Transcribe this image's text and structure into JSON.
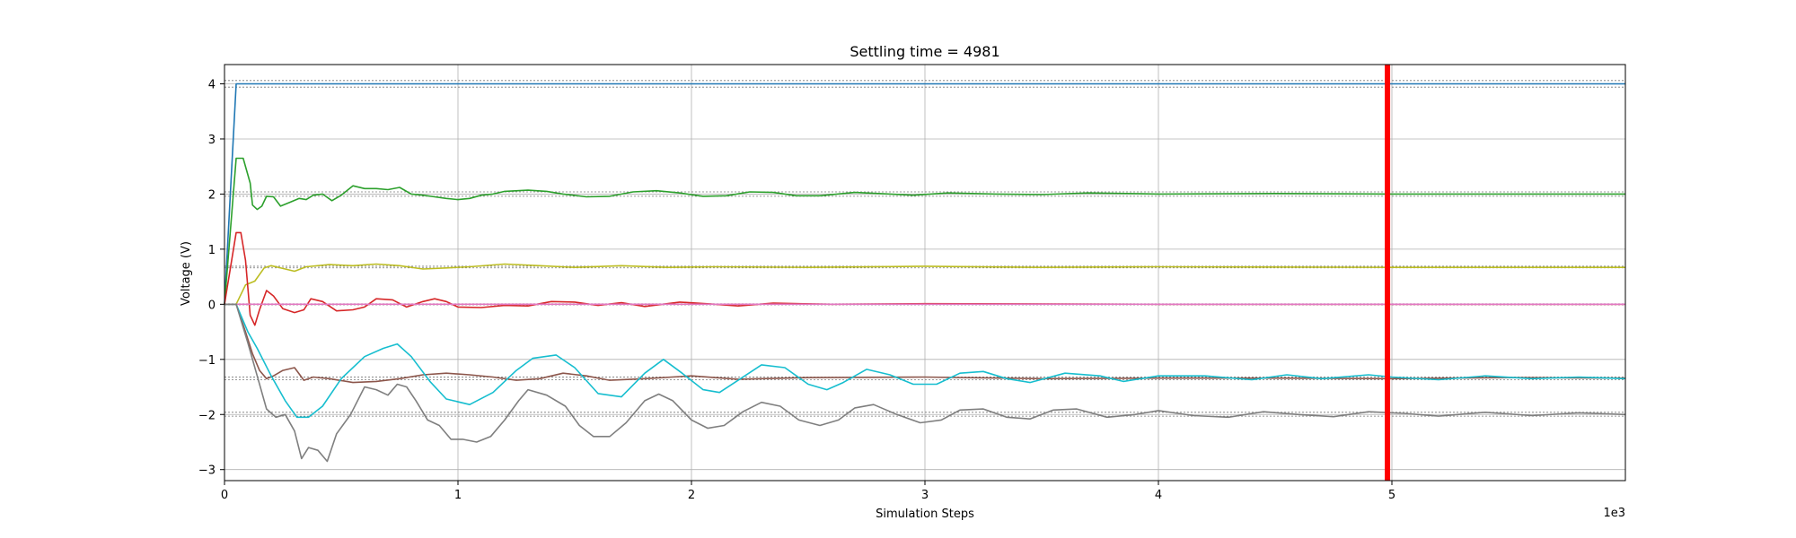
{
  "chart_data": {
    "type": "line",
    "title": "Settling time = 4981",
    "xlabel": "Simulation Steps",
    "ylabel": "Voltage (V)",
    "x_offset_label": "1e3",
    "xlim": [
      0,
      6
    ],
    "ylim": [
      -3.2,
      4.35
    ],
    "xticks": [
      0,
      1,
      2,
      3,
      4,
      5
    ],
    "xtick_labels": [
      "0",
      "1",
      "2",
      "3",
      "4",
      "5"
    ],
    "yticks": [
      -3,
      -2,
      -1,
      0,
      1,
      2,
      3,
      4
    ],
    "ytick_labels": [
      "−3",
      "−2",
      "−1",
      "0",
      "1",
      "2",
      "3",
      "4"
    ],
    "grid": true,
    "settling_time": 4.981,
    "settling_color": "#ff0000",
    "tolerance_bands": [
      [
        3.94,
        4.06
      ],
      [
        1.96,
        2.04
      ],
      [
        0.66,
        0.69
      ],
      [
        -0.01,
        0.01
      ],
      [
        -1.37,
        -1.32
      ],
      [
        -2.03,
        -1.96
      ]
    ],
    "series": [
      {
        "color": "#1f77b4",
        "points": [
          [
            0,
            0
          ],
          [
            0.05,
            4
          ],
          [
            6,
            4
          ]
        ]
      },
      {
        "color": "#2ca02c",
        "points": [
          [
            0,
            0
          ],
          [
            0.05,
            2.65
          ],
          [
            0.08,
            2.65
          ],
          [
            0.11,
            2.2
          ],
          [
            0.12,
            1.8
          ],
          [
            0.14,
            1.72
          ],
          [
            0.16,
            1.78
          ],
          [
            0.18,
            1.96
          ],
          [
            0.21,
            1.95
          ],
          [
            0.24,
            1.78
          ],
          [
            0.28,
            1.85
          ],
          [
            0.32,
            1.92
          ],
          [
            0.35,
            1.9
          ],
          [
            0.38,
            1.98
          ],
          [
            0.42,
            2.0
          ],
          [
            0.46,
            1.88
          ],
          [
            0.5,
            1.98
          ],
          [
            0.55,
            2.15
          ],
          [
            0.6,
            2.1
          ],
          [
            0.65,
            2.1
          ],
          [
            0.7,
            2.08
          ],
          [
            0.75,
            2.12
          ],
          [
            0.8,
            2.0
          ],
          [
            0.85,
            1.98
          ],
          [
            0.9,
            1.95
          ],
          [
            0.95,
            1.92
          ],
          [
            1.0,
            1.9
          ],
          [
            1.05,
            1.92
          ],
          [
            1.1,
            1.98
          ],
          [
            1.15,
            2.0
          ],
          [
            1.2,
            2.05
          ],
          [
            1.3,
            2.07
          ],
          [
            1.38,
            2.05
          ],
          [
            1.45,
            2.0
          ],
          [
            1.55,
            1.95
          ],
          [
            1.65,
            1.96
          ],
          [
            1.75,
            2.04
          ],
          [
            1.85,
            2.06
          ],
          [
            1.95,
            2.02
          ],
          [
            2.05,
            1.96
          ],
          [
            2.15,
            1.97
          ],
          [
            2.25,
            2.04
          ],
          [
            2.35,
            2.03
          ],
          [
            2.45,
            1.97
          ],
          [
            2.55,
            1.97
          ],
          [
            2.7,
            2.03
          ],
          [
            2.85,
            2.0
          ],
          [
            2.95,
            1.98
          ],
          [
            3.1,
            2.02
          ],
          [
            3.3,
            2.0
          ],
          [
            3.5,
            1.99
          ],
          [
            3.7,
            2.02
          ],
          [
            4.0,
            2.0
          ],
          [
            4.5,
            2.01
          ],
          [
            5.0,
            2.0
          ],
          [
            6,
            2.0
          ]
        ]
      },
      {
        "color": "#bcbd22",
        "points": [
          [
            0,
            0
          ],
          [
            0.05,
            0.0
          ],
          [
            0.09,
            0.35
          ],
          [
            0.13,
            0.42
          ],
          [
            0.17,
            0.66
          ],
          [
            0.2,
            0.7
          ],
          [
            0.25,
            0.65
          ],
          [
            0.3,
            0.6
          ],
          [
            0.35,
            0.68
          ],
          [
            0.45,
            0.72
          ],
          [
            0.55,
            0.7
          ],
          [
            0.65,
            0.73
          ],
          [
            0.75,
            0.7
          ],
          [
            0.85,
            0.64
          ],
          [
            0.95,
            0.66
          ],
          [
            1.05,
            0.68
          ],
          [
            1.2,
            0.73
          ],
          [
            1.35,
            0.7
          ],
          [
            1.5,
            0.67
          ],
          [
            1.7,
            0.7
          ],
          [
            1.9,
            0.67
          ],
          [
            2.1,
            0.68
          ],
          [
            2.5,
            0.67
          ],
          [
            3.0,
            0.69
          ],
          [
            3.5,
            0.67
          ],
          [
            4.0,
            0.68
          ],
          [
            5.0,
            0.67
          ],
          [
            6,
            0.67
          ]
        ]
      },
      {
        "color": "#d62728",
        "points": [
          [
            0,
            0
          ],
          [
            0.05,
            1.3
          ],
          [
            0.07,
            1.3
          ],
          [
            0.09,
            0.8
          ],
          [
            0.11,
            -0.2
          ],
          [
            0.13,
            -0.38
          ],
          [
            0.15,
            -0.1
          ],
          [
            0.18,
            0.25
          ],
          [
            0.21,
            0.15
          ],
          [
            0.25,
            -0.08
          ],
          [
            0.3,
            -0.15
          ],
          [
            0.34,
            -0.1
          ],
          [
            0.37,
            0.1
          ],
          [
            0.42,
            0.05
          ],
          [
            0.48,
            -0.12
          ],
          [
            0.55,
            -0.1
          ],
          [
            0.6,
            -0.05
          ],
          [
            0.65,
            0.1
          ],
          [
            0.72,
            0.08
          ],
          [
            0.78,
            -0.05
          ],
          [
            0.85,
            0.05
          ],
          [
            0.9,
            0.1
          ],
          [
            0.95,
            0.05
          ],
          [
            1.0,
            -0.05
          ],
          [
            1.1,
            -0.06
          ],
          [
            1.2,
            -0.02
          ],
          [
            1.3,
            -0.03
          ],
          [
            1.4,
            0.05
          ],
          [
            1.5,
            0.04
          ],
          [
            1.6,
            -0.02
          ],
          [
            1.7,
            0.03
          ],
          [
            1.8,
            -0.04
          ],
          [
            1.95,
            0.04
          ],
          [
            2.1,
            0.0
          ],
          [
            2.2,
            -0.03
          ],
          [
            2.35,
            0.02
          ],
          [
            2.6,
            0.0
          ],
          [
            3.0,
            0.01
          ],
          [
            4.0,
            0.0
          ],
          [
            6,
            0.0
          ]
        ]
      },
      {
        "color": "#e377c2",
        "points": [
          [
            0,
            0
          ],
          [
            0.5,
            0
          ],
          [
            1,
            0
          ],
          [
            2,
            0
          ],
          [
            3,
            0
          ],
          [
            4,
            0
          ],
          [
            5,
            0
          ],
          [
            6,
            0
          ]
        ]
      },
      {
        "color": "#8c564b",
        "points": [
          [
            0,
            0
          ],
          [
            0.05,
            0.0
          ],
          [
            0.09,
            -0.5
          ],
          [
            0.12,
            -0.9
          ],
          [
            0.15,
            -1.2
          ],
          [
            0.18,
            -1.35
          ],
          [
            0.21,
            -1.3
          ],
          [
            0.25,
            -1.2
          ],
          [
            0.3,
            -1.15
          ],
          [
            0.34,
            -1.38
          ],
          [
            0.38,
            -1.32
          ],
          [
            0.45,
            -1.35
          ],
          [
            0.55,
            -1.42
          ],
          [
            0.65,
            -1.4
          ],
          [
            0.75,
            -1.35
          ],
          [
            0.85,
            -1.28
          ],
          [
            0.95,
            -1.25
          ],
          [
            1.05,
            -1.28
          ],
          [
            1.15,
            -1.32
          ],
          [
            1.25,
            -1.38
          ],
          [
            1.35,
            -1.35
          ],
          [
            1.45,
            -1.25
          ],
          [
            1.55,
            -1.3
          ],
          [
            1.65,
            -1.38
          ],
          [
            1.8,
            -1.35
          ],
          [
            2.0,
            -1.3
          ],
          [
            2.2,
            -1.36
          ],
          [
            2.5,
            -1.33
          ],
          [
            3.0,
            -1.32
          ],
          [
            3.5,
            -1.35
          ],
          [
            4.0,
            -1.34
          ],
          [
            4.5,
            -1.34
          ],
          [
            5.0,
            -1.35
          ],
          [
            5.5,
            -1.33
          ],
          [
            6,
            -1.34
          ]
        ]
      },
      {
        "color": "#17becf",
        "points": [
          [
            0,
            0
          ],
          [
            0.05,
            0.0
          ],
          [
            0.1,
            -0.5
          ],
          [
            0.14,
            -0.8
          ],
          [
            0.2,
            -1.3
          ],
          [
            0.26,
            -1.75
          ],
          [
            0.31,
            -2.05
          ],
          [
            0.36,
            -2.05
          ],
          [
            0.42,
            -1.85
          ],
          [
            0.5,
            -1.35
          ],
          [
            0.6,
            -0.95
          ],
          [
            0.68,
            -0.8
          ],
          [
            0.74,
            -0.72
          ],
          [
            0.8,
            -0.95
          ],
          [
            0.88,
            -1.4
          ],
          [
            0.95,
            -1.72
          ],
          [
            1.05,
            -1.82
          ],
          [
            1.15,
            -1.6
          ],
          [
            1.25,
            -1.2
          ],
          [
            1.32,
            -0.98
          ],
          [
            1.42,
            -0.92
          ],
          [
            1.5,
            -1.15
          ],
          [
            1.6,
            -1.62
          ],
          [
            1.7,
            -1.68
          ],
          [
            1.8,
            -1.25
          ],
          [
            1.88,
            -1.0
          ],
          [
            1.96,
            -1.25
          ],
          [
            2.05,
            -1.55
          ],
          [
            2.12,
            -1.6
          ],
          [
            2.2,
            -1.38
          ],
          [
            2.3,
            -1.1
          ],
          [
            2.4,
            -1.15
          ],
          [
            2.5,
            -1.45
          ],
          [
            2.58,
            -1.55
          ],
          [
            2.65,
            -1.42
          ],
          [
            2.75,
            -1.18
          ],
          [
            2.85,
            -1.28
          ],
          [
            2.95,
            -1.45
          ],
          [
            3.05,
            -1.45
          ],
          [
            3.15,
            -1.25
          ],
          [
            3.25,
            -1.22
          ],
          [
            3.35,
            -1.35
          ],
          [
            3.45,
            -1.42
          ],
          [
            3.6,
            -1.25
          ],
          [
            3.75,
            -1.3
          ],
          [
            3.85,
            -1.4
          ],
          [
            4.0,
            -1.3
          ],
          [
            4.2,
            -1.3
          ],
          [
            4.4,
            -1.37
          ],
          [
            4.55,
            -1.28
          ],
          [
            4.7,
            -1.35
          ],
          [
            4.9,
            -1.28
          ],
          [
            5.0,
            -1.32
          ],
          [
            5.2,
            -1.37
          ],
          [
            5.4,
            -1.3
          ],
          [
            5.6,
            -1.35
          ],
          [
            5.8,
            -1.32
          ],
          [
            6,
            -1.35
          ]
        ]
      },
      {
        "color": "#7f7f7f",
        "points": [
          [
            0,
            0
          ],
          [
            0.05,
            0.0
          ],
          [
            0.1,
            -0.7
          ],
          [
            0.14,
            -1.3
          ],
          [
            0.18,
            -1.9
          ],
          [
            0.22,
            -2.05
          ],
          [
            0.26,
            -2.0
          ],
          [
            0.3,
            -2.3
          ],
          [
            0.33,
            -2.8
          ],
          [
            0.36,
            -2.6
          ],
          [
            0.4,
            -2.65
          ],
          [
            0.44,
            -2.85
          ],
          [
            0.48,
            -2.35
          ],
          [
            0.54,
            -2.0
          ],
          [
            0.6,
            -1.5
          ],
          [
            0.65,
            -1.55
          ],
          [
            0.7,
            -1.65
          ],
          [
            0.74,
            -1.45
          ],
          [
            0.78,
            -1.5
          ],
          [
            0.82,
            -1.75
          ],
          [
            0.87,
            -2.1
          ],
          [
            0.92,
            -2.2
          ],
          [
            0.97,
            -2.45
          ],
          [
            1.02,
            -2.45
          ],
          [
            1.08,
            -2.5
          ],
          [
            1.14,
            -2.4
          ],
          [
            1.2,
            -2.1
          ],
          [
            1.26,
            -1.75
          ],
          [
            1.3,
            -1.55
          ],
          [
            1.38,
            -1.65
          ],
          [
            1.46,
            -1.85
          ],
          [
            1.52,
            -2.2
          ],
          [
            1.58,
            -2.4
          ],
          [
            1.65,
            -2.4
          ],
          [
            1.72,
            -2.15
          ],
          [
            1.8,
            -1.75
          ],
          [
            1.86,
            -1.63
          ],
          [
            1.92,
            -1.75
          ],
          [
            2.0,
            -2.1
          ],
          [
            2.07,
            -2.25
          ],
          [
            2.14,
            -2.2
          ],
          [
            2.22,
            -1.95
          ],
          [
            2.3,
            -1.78
          ],
          [
            2.38,
            -1.85
          ],
          [
            2.46,
            -2.1
          ],
          [
            2.55,
            -2.2
          ],
          [
            2.63,
            -2.1
          ],
          [
            2.7,
            -1.88
          ],
          [
            2.78,
            -1.82
          ],
          [
            2.88,
            -2.0
          ],
          [
            2.98,
            -2.15
          ],
          [
            3.07,
            -2.1
          ],
          [
            3.15,
            -1.92
          ],
          [
            3.25,
            -1.9
          ],
          [
            3.35,
            -2.05
          ],
          [
            3.45,
            -2.08
          ],
          [
            3.55,
            -1.92
          ],
          [
            3.65,
            -1.9
          ],
          [
            3.78,
            -2.05
          ],
          [
            3.9,
            -2.0
          ],
          [
            4.0,
            -1.93
          ],
          [
            4.15,
            -2.02
          ],
          [
            4.3,
            -2.05
          ],
          [
            4.45,
            -1.95
          ],
          [
            4.6,
            -2.0
          ],
          [
            4.75,
            -2.04
          ],
          [
            4.9,
            -1.95
          ],
          [
            5.05,
            -1.98
          ],
          [
            5.2,
            -2.03
          ],
          [
            5.4,
            -1.96
          ],
          [
            5.6,
            -2.02
          ],
          [
            5.8,
            -1.97
          ],
          [
            6,
            -2.0
          ]
        ]
      }
    ]
  }
}
